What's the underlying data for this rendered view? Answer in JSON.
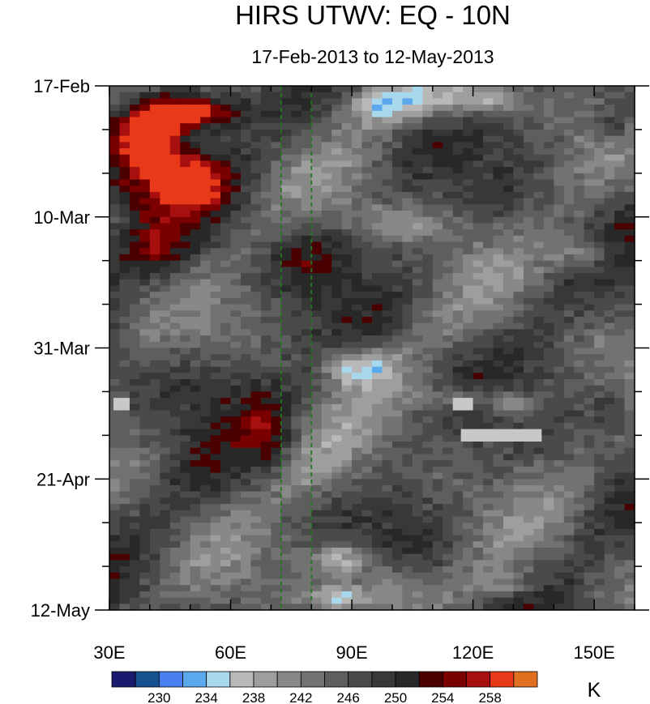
{
  "chart_data": {
    "type": "heatmap",
    "title": "HIRS UTWV: EQ - 10N",
    "subtitle": "17-Feb-2013 to 12-May-2013",
    "x_ticks": [
      {
        "value": 30,
        "label": "30E"
      },
      {
        "value": 60,
        "label": "60E"
      },
      {
        "value": 90,
        "label": "90E"
      },
      {
        "value": 120,
        "label": "120E"
      },
      {
        "value": 150,
        "label": "150E"
      }
    ],
    "y_ticks": [
      {
        "value": 0,
        "label": "17-Feb"
      },
      {
        "value": 21,
        "label": "10-Mar"
      },
      {
        "value": 42,
        "label": "31-Mar"
      },
      {
        "value": 63,
        "label": "21-Apr"
      },
      {
        "value": 84,
        "label": "12-May"
      }
    ],
    "xlim": [
      30,
      160
    ],
    "ylim": [
      0,
      84
    ],
    "reference_lines_x": [
      72.5,
      80
    ],
    "reference_line_color": "#1f7a1f",
    "colorbar": {
      "units": "K",
      "levels": [
        228,
        230,
        232,
        234,
        236,
        238,
        240,
        242,
        244,
        246,
        248,
        250,
        252,
        254,
        256,
        258
      ],
      "labels": [
        {
          "value": 230,
          "label": "230"
        },
        {
          "value": 234,
          "label": "234"
        },
        {
          "value": 238,
          "label": "238"
        },
        {
          "value": 242,
          "label": "242"
        },
        {
          "value": 246,
          "label": "246"
        },
        {
          "value": 250,
          "label": "250"
        },
        {
          "value": 254,
          "label": "254"
        },
        {
          "value": 258,
          "label": "258"
        }
      ],
      "colors": [
        "#1a1a6e",
        "#15528f",
        "#4a7ff0",
        "#5ba8ec",
        "#a8d8ec",
        "#b8b8b8",
        "#9e9e9e",
        "#888888",
        "#727272",
        "#5e5e5e",
        "#4a4a4a",
        "#383838",
        "#282828",
        "#4a0000",
        "#7a0000",
        "#a81010",
        "#e83a18",
        "#e07020"
      ]
    },
    "features": [
      {
        "lon": 48,
        "day": 4,
        "value": 14,
        "wlon": 9,
        "wday": 3
      },
      {
        "lon": 40,
        "day": 8,
        "value": 12,
        "wlon": 8,
        "wday": 5
      },
      {
        "lon": 50,
        "day": 15,
        "value": 11,
        "wlon": 9,
        "wday": 4
      },
      {
        "lon": 38,
        "day": 13,
        "value": 7,
        "wlon": 12,
        "wday": 10
      },
      {
        "lon": 58,
        "day": 4,
        "value": 6,
        "wlon": 8,
        "wday": 3
      },
      {
        "lon": 97,
        "day": 3,
        "value": -9,
        "wlon": 10,
        "wday": 3
      },
      {
        "lon": 115,
        "day": 2,
        "value": -8,
        "wlon": 12,
        "wday": 3
      },
      {
        "lon": 125,
        "day": 2,
        "value": -6,
        "wlon": 6,
        "wday": 2
      },
      {
        "lon": 103,
        "day": 22,
        "value": -5,
        "wlon": 14,
        "wday": 3
      },
      {
        "lon": 148,
        "day": 27,
        "value": -7,
        "wlon": 8,
        "wday": 3
      },
      {
        "lon": 92,
        "day": 45,
        "value": -10,
        "wlon": 9,
        "wday": 3
      },
      {
        "lon": 117,
        "day": 50,
        "value": -6,
        "wlon": 12,
        "wday": 2
      },
      {
        "lon": 130,
        "day": 51,
        "value": -7,
        "wlon": 6,
        "wday": 2
      },
      {
        "lon": 82,
        "day": 62,
        "value": -4,
        "wlon": 12,
        "wday": 6
      },
      {
        "lon": 88,
        "day": 76,
        "value": -9,
        "wlon": 8,
        "wday": 3
      },
      {
        "lon": 87,
        "day": 82,
        "value": -10,
        "wlon": 8,
        "wday": 2
      },
      {
        "lon": 100,
        "day": 80,
        "value": -6,
        "wlon": 9,
        "wday": 4
      },
      {
        "lon": 128,
        "day": 80,
        "value": -5,
        "wlon": 8,
        "wday": 2
      },
      {
        "lon": 42,
        "day": 27,
        "value": 4,
        "wlon": 10,
        "wday": 4
      },
      {
        "lon": 70,
        "day": 56,
        "value": 6,
        "wlon": 6,
        "wday": 6
      },
      {
        "lon": 80,
        "day": 27,
        "value": 5,
        "wlon": 10,
        "wday": 5
      },
      {
        "lon": 55,
        "day": 48,
        "value": 4,
        "wlon": 14,
        "wday": 6
      },
      {
        "lon": 155,
        "day": 6,
        "value": 6,
        "wlon": 5,
        "wday": 3
      },
      {
        "lon": 155,
        "day": 52,
        "value": 4,
        "wlon": 5,
        "wday": 4
      }
    ],
    "missing_blocks": [
      {
        "lon0": 31,
        "lon1": 35,
        "day0": 50,
        "day1": 52
      },
      {
        "lon0": 115,
        "lon1": 120,
        "day0": 50,
        "day1": 52
      },
      {
        "lon0": 117,
        "lon1": 137,
        "day0": 55,
        "day1": 57
      }
    ]
  }
}
